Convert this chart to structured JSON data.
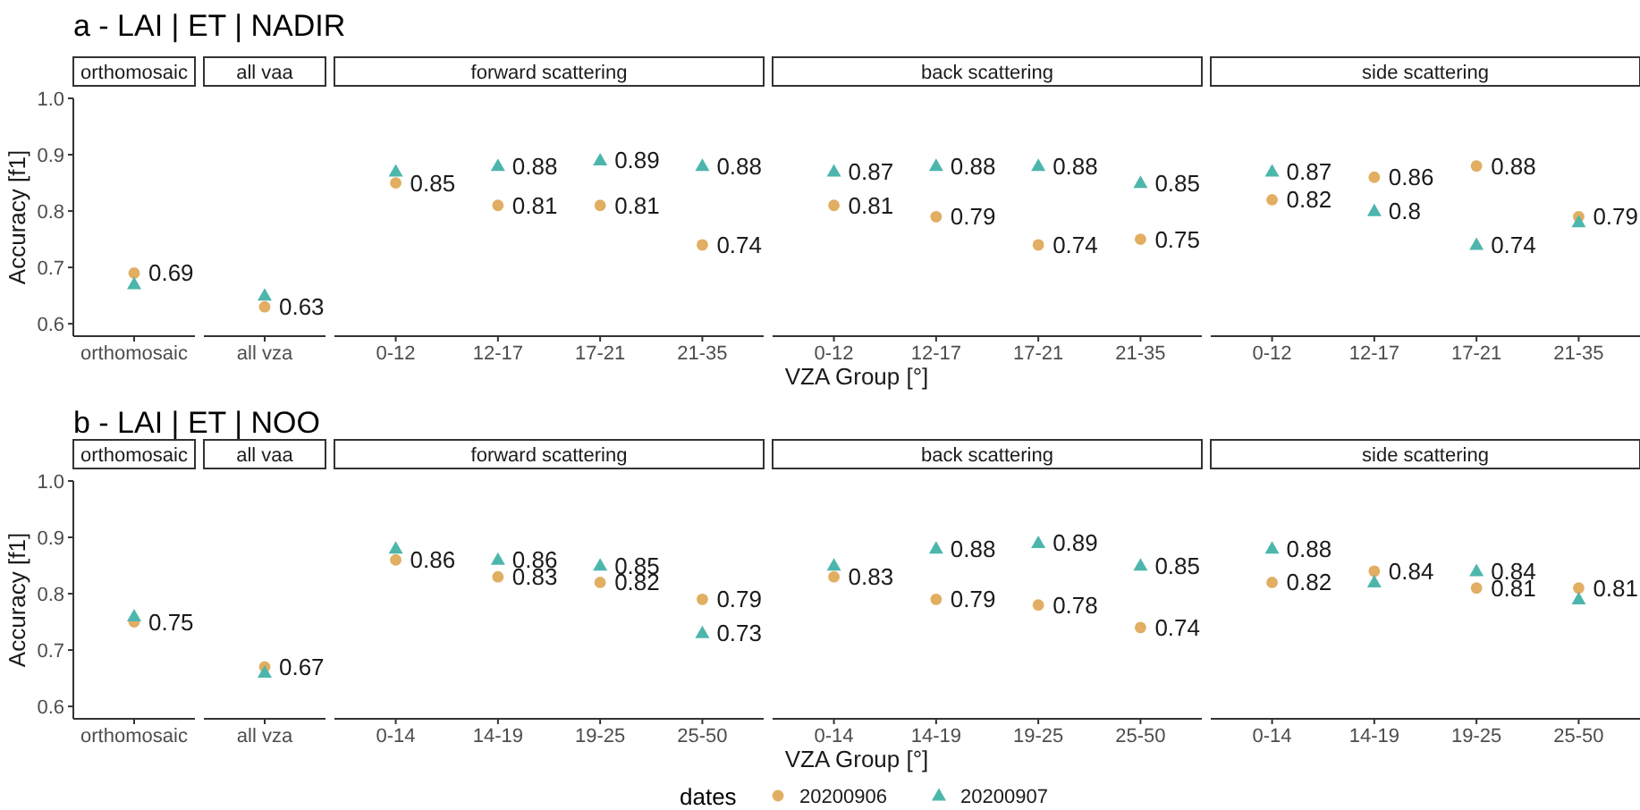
{
  "chart_data": [
    {
      "type": "scatter",
      "title": "a - LAI | ET | NADIR",
      "subtitle": "orthomosaic",
      "ylabel": "Accuracy [f1]",
      "categories": [
        "orthomosaic"
      ],
      "ylim": [
        0.578,
        1.0
      ],
      "yticks": [
        {
          "value": 0.6,
          "label": "0.6"
        },
        {
          "value": 0.7,
          "label": "0.7"
        },
        {
          "value": 0.8,
          "label": "0.8"
        },
        {
          "value": 0.9,
          "label": "0.9"
        },
        {
          "value": 1.0,
          "label": "1.0"
        }
      ],
      "legend": "bottom",
      "legend_title": "dates",
      "series": [
        {
          "name": "20200906",
          "color": "#e1ae62",
          "marker": "circle",
          "values": [
            0.69
          ],
          "value_labels": [
            "0.69"
          ]
        },
        {
          "name": "20200907",
          "color": "#4db6ac",
          "marker": "triangle",
          "values": [
            0.67
          ],
          "value_labels": [
            null
          ]
        }
      ]
    },
    {
      "type": "scatter",
      "subtitle": "all vaa",
      "categories": [
        "all vza"
      ],
      "ylim": [
        0.578,
        1.0
      ],
      "tick_labels": "x",
      "series": [
        {
          "name": "20200906",
          "color": "#e1ae62",
          "marker": "circle",
          "values": [
            0.63
          ],
          "value_labels": [
            "0.63"
          ]
        },
        {
          "name": "20200907",
          "color": "#4db6ac",
          "marker": "triangle",
          "values": [
            0.65
          ],
          "value_labels": [
            null
          ]
        }
      ]
    },
    {
      "type": "scatter",
      "subtitle": "forward scattering",
      "xlabel": "VZA Group [°]",
      "categories": [
        "0-12",
        "12-17",
        "17-21",
        "21-35"
      ],
      "ylim": [
        0.578,
        1.0
      ],
      "tick_labels": "x",
      "series": [
        {
          "name": "20200906",
          "color": "#e1ae62",
          "marker": "circle",
          "values": [
            0.85,
            0.81,
            0.81,
            0.74
          ],
          "value_labels": [
            "0.85",
            "0.81",
            "0.81",
            "0.74"
          ]
        },
        {
          "name": "20200907",
          "color": "#4db6ac",
          "marker": "triangle",
          "values": [
            0.87,
            0.88,
            0.89,
            0.88
          ],
          "value_labels": [
            null,
            "0.88",
            "0.89",
            "0.88"
          ]
        }
      ]
    },
    {
      "type": "scatter",
      "subtitle": "back scattering",
      "categories": [
        "0-12",
        "12-17",
        "17-21",
        "21-35"
      ],
      "ylim": [
        0.578,
        1.0
      ],
      "tick_labels": "x",
      "series": [
        {
          "name": "20200906",
          "color": "#e1ae62",
          "marker": "circle",
          "values": [
            0.81,
            0.79,
            0.74,
            0.75
          ],
          "value_labels": [
            "0.81",
            "0.79",
            "0.74",
            "0.75"
          ]
        },
        {
          "name": "20200907",
          "color": "#4db6ac",
          "marker": "triangle",
          "values": [
            0.87,
            0.88,
            0.88,
            0.85
          ],
          "value_labels": [
            "0.87",
            "0.88",
            "0.88",
            "0.85"
          ]
        }
      ]
    },
    {
      "type": "scatter",
      "subtitle": "side scattering",
      "categories": [
        "0-12",
        "12-17",
        "17-21",
        "21-35"
      ],
      "ylim": [
        0.578,
        1.0
      ],
      "tick_labels": "x",
      "series": [
        {
          "name": "20200906",
          "color": "#e1ae62",
          "marker": "circle",
          "values": [
            0.82,
            0.86,
            0.88,
            0.79
          ],
          "value_labels": [
            "0.82",
            "0.86",
            "0.88",
            "0.79"
          ]
        },
        {
          "name": "20200907",
          "color": "#4db6ac",
          "marker": "triangle",
          "values": [
            0.87,
            0.8,
            0.74,
            0.78
          ],
          "value_labels": [
            "0.87",
            "0.8",
            "0.74",
            null
          ]
        }
      ]
    },
    {
      "type": "scatter",
      "title": "b - LAI | ET | NOO",
      "subtitle": "orthomosaic",
      "ylabel": "Accuracy [f1]",
      "categories": [
        "orthomosaic"
      ],
      "ylim": [
        0.578,
        1.0
      ],
      "yticks": [
        {
          "value": 0.6,
          "label": "0.6"
        },
        {
          "value": 0.7,
          "label": "0.7"
        },
        {
          "value": 0.8,
          "label": "0.8"
        },
        {
          "value": 0.9,
          "label": "0.9"
        },
        {
          "value": 1.0,
          "label": "1.0"
        }
      ],
      "series": [
        {
          "name": "20200906",
          "color": "#e1ae62",
          "marker": "circle",
          "values": [
            0.75
          ],
          "value_labels": [
            "0.75"
          ]
        },
        {
          "name": "20200907",
          "color": "#4db6ac",
          "marker": "triangle",
          "values": [
            0.76
          ],
          "value_labels": [
            null
          ]
        }
      ]
    },
    {
      "type": "scatter",
      "subtitle": "all vaa",
      "categories": [
        "all vza"
      ],
      "ylim": [
        0.578,
        1.0
      ],
      "tick_labels": "x",
      "series": [
        {
          "name": "20200906",
          "color": "#e1ae62",
          "marker": "circle",
          "values": [
            0.67
          ],
          "value_labels": [
            "0.67"
          ]
        },
        {
          "name": "20200907",
          "color": "#4db6ac",
          "marker": "triangle",
          "values": [
            0.66
          ],
          "value_labels": [
            null
          ]
        }
      ]
    },
    {
      "type": "scatter",
      "subtitle": "forward scattering",
      "xlabel": "VZA Group [°]",
      "categories": [
        "0-14",
        "14-19",
        "19-25",
        "25-50"
      ],
      "ylim": [
        0.578,
        1.0
      ],
      "tick_labels": "x",
      "series": [
        {
          "name": "20200906",
          "color": "#e1ae62",
          "marker": "circle",
          "values": [
            0.86,
            0.83,
            0.82,
            0.79
          ],
          "value_labels": [
            "0.86",
            "0.83",
            "0.82",
            "0.79"
          ]
        },
        {
          "name": "20200907",
          "color": "#4db6ac",
          "marker": "triangle",
          "values": [
            0.88,
            0.86,
            0.85,
            0.73
          ],
          "value_labels": [
            null,
            "0.86",
            "0.85",
            "0.73"
          ]
        }
      ]
    },
    {
      "type": "scatter",
      "subtitle": "back scattering",
      "categories": [
        "0-14",
        "14-19",
        "19-25",
        "25-50"
      ],
      "ylim": [
        0.578,
        1.0
      ],
      "tick_labels": "x",
      "series": [
        {
          "name": "20200906",
          "color": "#e1ae62",
          "marker": "circle",
          "values": [
            0.83,
            0.79,
            0.78,
            0.74
          ],
          "value_labels": [
            "0.83",
            "0.79",
            "0.78",
            "0.74"
          ]
        },
        {
          "name": "20200907",
          "color": "#4db6ac",
          "marker": "triangle",
          "values": [
            0.85,
            0.88,
            0.89,
            0.85
          ],
          "value_labels": [
            null,
            "0.88",
            "0.89",
            "0.85"
          ]
        }
      ]
    },
    {
      "type": "scatter",
      "subtitle": "side scattering",
      "categories": [
        "0-14",
        "14-19",
        "19-25",
        "25-50"
      ],
      "ylim": [
        0.578,
        1.0
      ],
      "tick_labels": "x",
      "series": [
        {
          "name": "20200906",
          "color": "#e1ae62",
          "marker": "circle",
          "values": [
            0.82,
            0.84,
            0.81,
            0.81
          ],
          "value_labels": [
            "0.82",
            "0.84",
            "0.81",
            "0.81"
          ]
        },
        {
          "name": "20200907",
          "color": "#4db6ac",
          "marker": "triangle",
          "values": [
            0.88,
            0.82,
            0.84,
            0.79
          ],
          "value_labels": [
            "0.88",
            null,
            "0.84",
            null
          ]
        }
      ]
    }
  ]
}
